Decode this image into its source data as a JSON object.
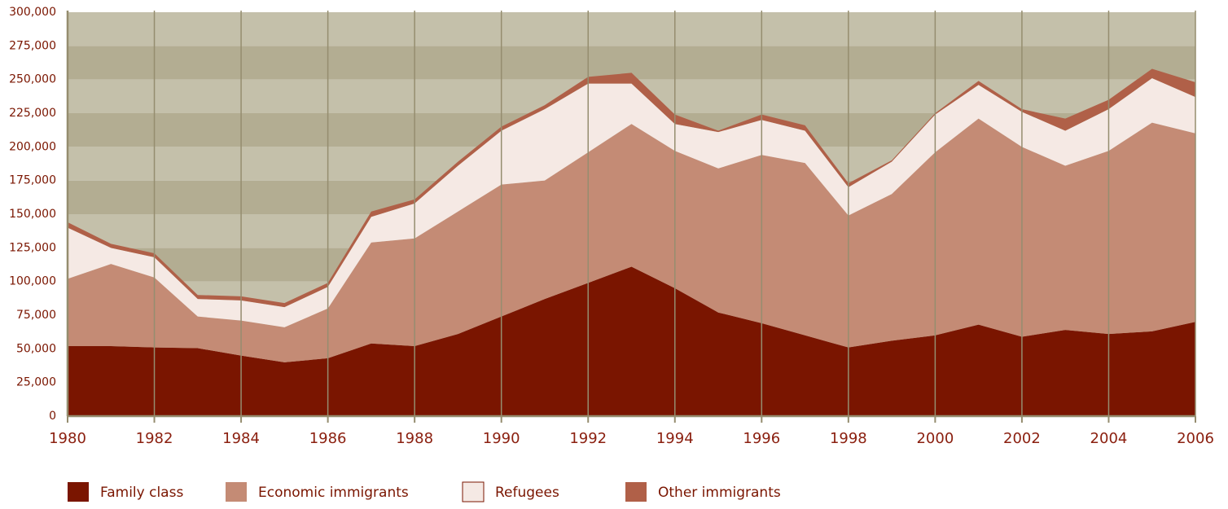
{
  "chart_data": {
    "type": "stacked_area",
    "x": [
      1980,
      1981,
      1982,
      1983,
      1984,
      1985,
      1986,
      1987,
      1988,
      1989,
      1990,
      1991,
      1992,
      1993,
      1994,
      1995,
      1996,
      1997,
      1998,
      1999,
      2000,
      2001,
      2002,
      2003,
      2004,
      2005,
      2006
    ],
    "series": [
      {
        "name": "Family class",
        "color": "#7a1500",
        "values": [
          52000,
          52000,
          51000,
          50500,
          45000,
          40000,
          43000,
          54000,
          52000,
          61000,
          74000,
          87000,
          99000,
          111000,
          95000,
          77000,
          69000,
          60000,
          51000,
          56000,
          60000,
          68000,
          59000,
          64000,
          61000,
          63000,
          70000
        ]
      },
      {
        "name": "Economic immigrants",
        "color": "#c48b75",
        "values": [
          50000,
          61000,
          52000,
          23500,
          26000,
          26000,
          37000,
          75000,
          80000,
          91000,
          98000,
          88000,
          97000,
          106000,
          102000,
          107000,
          125000,
          128000,
          98000,
          109000,
          136000,
          153000,
          141000,
          122000,
          136000,
          155000,
          140000
        ]
      },
      {
        "name": "Refugees",
        "color": "#f5e9e4",
        "values": [
          38000,
          12000,
          15000,
          13000,
          15000,
          15000,
          16000,
          19000,
          26000,
          34000,
          40000,
          53000,
          51000,
          30000,
          20000,
          27000,
          26000,
          24000,
          21000,
          24000,
          28000,
          25000,
          26000,
          26000,
          31000,
          33000,
          27000
        ]
      },
      {
        "name": "Other immigrants",
        "color": "#b06048",
        "values": [
          4000,
          3000,
          3000,
          3000,
          3000,
          3000,
          3000,
          4000,
          3000,
          3000,
          3000,
          3000,
          5000,
          8000,
          7000,
          1000,
          4000,
          4000,
          3000,
          1000,
          1000,
          3000,
          2000,
          9000,
          7000,
          7000,
          11000
        ]
      }
    ],
    "xlim": [
      1980,
      2006
    ],
    "xticks": [
      1980,
      1982,
      1984,
      1986,
      1988,
      1990,
      1992,
      1994,
      1996,
      1998,
      2000,
      2002,
      2004,
      2006
    ],
    "ylim": [
      0,
      300000
    ],
    "yticks": [
      0,
      {
        "value": 25000,
        "label": "25,000"
      },
      {
        "value": 50000,
        "label": "50,000"
      },
      {
        "value": 75000,
        "label": "75,000"
      },
      {
        "value": 100000,
        "label": "100,000"
      },
      {
        "value": 125000,
        "label": "125,000"
      },
      {
        "value": 150000,
        "label": "150,000"
      },
      {
        "value": 175000,
        "label": "175,000"
      },
      {
        "value": 200000,
        "label": "200,000"
      },
      {
        "value": 225000,
        "label": "225,000"
      },
      {
        "value": 250000,
        "label": "250,000"
      },
      {
        "value": 275000,
        "label": "275,000"
      },
      {
        "value": 300000,
        "label": "300,000"
      }
    ],
    "grid": true
  }
}
